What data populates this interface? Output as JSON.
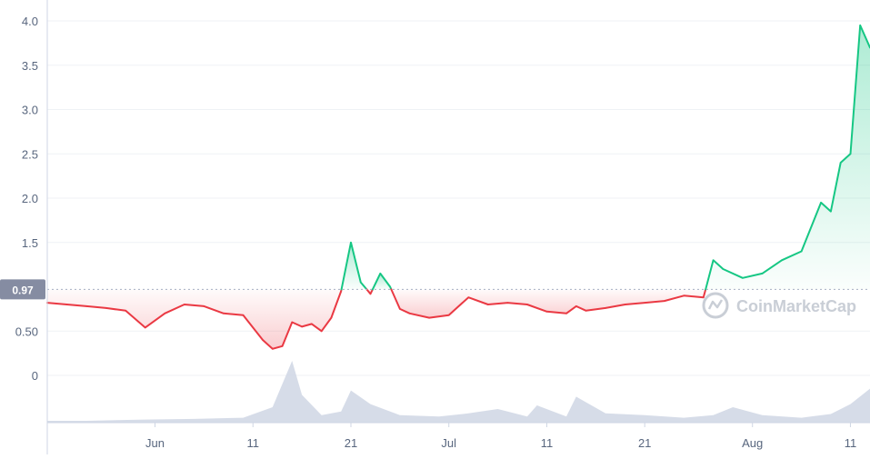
{
  "chart_data": {
    "type": "line",
    "title": "",
    "xlabel": "",
    "ylabel": "",
    "ylim": [
      -0.5,
      4.1
    ],
    "y_ticks": [
      {
        "value": 0,
        "label": "0"
      },
      {
        "value": 0.5,
        "label": "0.50"
      },
      {
        "value": 1.5,
        "label": "1.5"
      },
      {
        "value": 2.0,
        "label": "2.0"
      },
      {
        "value": 2.5,
        "label": "2.5"
      },
      {
        "value": 3.0,
        "label": "3.0"
      },
      {
        "value": 3.5,
        "label": "3.5"
      },
      {
        "value": 4.0,
        "label": "4.0"
      }
    ],
    "x_range": [
      "2021-05-21",
      "2021-08-13"
    ],
    "x_ticks": [
      {
        "date": "2021-06-01",
        "label": "Jun"
      },
      {
        "date": "2021-06-11",
        "label": "11"
      },
      {
        "date": "2021-06-21",
        "label": "21"
      },
      {
        "date": "2021-07-01",
        "label": "Jul"
      },
      {
        "date": "2021-07-11",
        "label": "11"
      },
      {
        "date": "2021-07-21",
        "label": "21"
      },
      {
        "date": "2021-08-01",
        "label": "Aug"
      },
      {
        "date": "2021-08-11",
        "label": "11"
      }
    ],
    "reference_price": 0.97,
    "reference_label": "0.97",
    "colors": {
      "up": "#16c784",
      "down": "#ea3943",
      "volume": "#cfd6e4",
      "label_bg": "#858ca2",
      "grid": "#eff2f5"
    },
    "series": [
      {
        "x": [
          "2021-05-21",
          "2021-05-23",
          "2021-05-25",
          "2021-05-27",
          "2021-05-29",
          "2021-05-31",
          "2021-06-02",
          "2021-06-04",
          "2021-06-06",
          "2021-06-08",
          "2021-06-10",
          "2021-06-12",
          "2021-06-13",
          "2021-06-14",
          "2021-06-15",
          "2021-06-16",
          "2021-06-17",
          "2021-06-18",
          "2021-06-19",
          "2021-06-20",
          "2021-06-21",
          "2021-06-22",
          "2021-06-23",
          "2021-06-24",
          "2021-06-25",
          "2021-06-26",
          "2021-06-27",
          "2021-06-29",
          "2021-07-01",
          "2021-07-03",
          "2021-07-05",
          "2021-07-07",
          "2021-07-09",
          "2021-07-11",
          "2021-07-13",
          "2021-07-14",
          "2021-07-15",
          "2021-07-17",
          "2021-07-19",
          "2021-07-21",
          "2021-07-23",
          "2021-07-25",
          "2021-07-27",
          "2021-07-28",
          "2021-07-29",
          "2021-07-31",
          "2021-08-02",
          "2021-08-04",
          "2021-08-06",
          "2021-08-08",
          "2021-08-09",
          "2021-08-10",
          "2021-08-11",
          "2021-08-12",
          "2021-08-13"
        ],
        "values": [
          0.82,
          0.8,
          0.78,
          0.76,
          0.73,
          0.54,
          0.7,
          0.8,
          0.78,
          0.7,
          0.68,
          0.4,
          0.3,
          0.33,
          0.6,
          0.55,
          0.58,
          0.5,
          0.65,
          0.95,
          1.5,
          1.05,
          0.92,
          1.15,
          1.0,
          0.75,
          0.7,
          0.65,
          0.68,
          0.88,
          0.8,
          0.82,
          0.8,
          0.72,
          0.7,
          0.78,
          0.73,
          0.76,
          0.8,
          0.82,
          0.84,
          0.9,
          0.88,
          1.3,
          1.2,
          1.1,
          1.15,
          1.3,
          1.4,
          1.95,
          1.85,
          2.4,
          2.5,
          3.95,
          3.7
        ]
      }
    ],
    "volume": {
      "x": [
        "2021-05-21",
        "2021-05-25",
        "2021-05-31",
        "2021-06-05",
        "2021-06-10",
        "2021-06-13",
        "2021-06-15",
        "2021-06-16",
        "2021-06-18",
        "2021-06-20",
        "2021-06-21",
        "2021-06-23",
        "2021-06-26",
        "2021-06-30",
        "2021-07-03",
        "2021-07-06",
        "2021-07-09",
        "2021-07-10",
        "2021-07-13",
        "2021-07-14",
        "2021-07-17",
        "2021-07-21",
        "2021-07-25",
        "2021-07-28",
        "2021-07-30",
        "2021-08-02",
        "2021-08-06",
        "2021-08-09",
        "2021-08-11",
        "2021-08-13"
      ],
      "values": [
        0.03,
        0.03,
        0.05,
        0.06,
        0.08,
        0.25,
        1.0,
        0.45,
        0.12,
        0.18,
        0.52,
        0.3,
        0.12,
        0.1,
        0.15,
        0.22,
        0.1,
        0.28,
        0.1,
        0.42,
        0.15,
        0.12,
        0.08,
        0.12,
        0.25,
        0.12,
        0.08,
        0.14,
        0.3,
        0.55
      ]
    },
    "watermark": "CoinMarketCap",
    "grid": true,
    "legend": "none"
  }
}
